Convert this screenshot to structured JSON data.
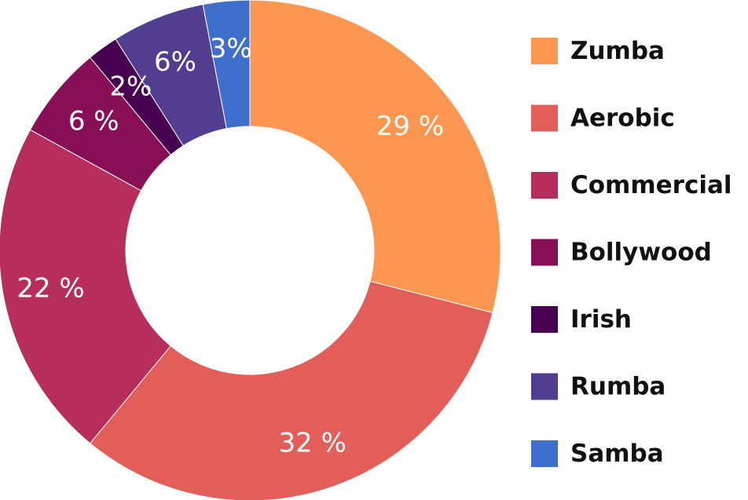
{
  "chart_data": {
    "type": "donut",
    "categories": [
      "Zumba",
      "Aerobic",
      "Commercial",
      "Bollywood",
      "Irish",
      "Rumba",
      "Samba"
    ],
    "values": [
      29,
      32,
      22,
      6,
      2,
      6,
      3
    ],
    "labels": [
      "29 %",
      "32 %",
      "22 %",
      "6 %",
      "2%",
      "6%",
      "3%"
    ],
    "colors": [
      "#FD9650",
      "#E35E58",
      "#B72D5B",
      "#880E56",
      "#480050",
      "#513E91",
      "#3F6FCC"
    ],
    "legend_position": "right"
  }
}
